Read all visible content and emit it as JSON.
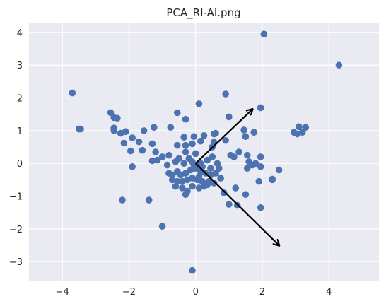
{
  "chart_data": {
    "type": "scatter",
    "title": "PCA_RI-AI.png",
    "xlabel": "",
    "ylabel": "",
    "xlim": [
      -5,
      5.5
    ],
    "ylim": [
      -3.6,
      4.3
    ],
    "x_ticks": [
      -4,
      -2,
      0,
      2,
      4
    ],
    "y_ticks": [
      -3,
      -2,
      -1,
      0,
      1,
      2,
      3,
      4
    ],
    "grid": true,
    "legend": "none",
    "colors": {
      "background": "#eaeaf2",
      "grid": "#ffffff",
      "points": "#4c72b0",
      "arrows": "#000000"
    },
    "points": [
      [
        -3.7,
        2.15
      ],
      [
        -3.5,
        1.05
      ],
      [
        -3.45,
        1.05
      ],
      [
        -2.55,
        1.55
      ],
      [
        -2.45,
        1.4
      ],
      [
        -2.35,
        1.38
      ],
      [
        -2.45,
        1.08
      ],
      [
        -2.45,
        1.0
      ],
      [
        -2.25,
        0.92
      ],
      [
        -2.1,
        0.97
      ],
      [
        -1.9,
        0.78
      ],
      [
        -2.15,
        0.62
      ],
      [
        -1.7,
        0.66
      ],
      [
        -1.55,
        1.0
      ],
      [
        -1.95,
        0.38
      ],
      [
        -1.6,
        0.4
      ],
      [
        -1.25,
        1.1
      ],
      [
        -0.75,
        1.1
      ],
      [
        -0.55,
        1.55
      ],
      [
        -0.3,
        1.35
      ],
      [
        0.1,
        1.82
      ],
      [
        -0.35,
        0.8
      ],
      [
        -0.05,
        0.82
      ],
      [
        0.25,
        0.85
      ],
      [
        0.55,
        0.9
      ],
      [
        0.6,
        0.92
      ],
      [
        0.15,
        0.68
      ],
      [
        0.55,
        0.65
      ],
      [
        0.9,
        0.7
      ],
      [
        0.5,
        0.5
      ],
      [
        -1.9,
        -0.1
      ],
      [
        -2.2,
        -1.12
      ],
      [
        -1.4,
        -1.12
      ],
      [
        -1.0,
        -1.92
      ],
      [
        -0.1,
        -3.27
      ],
      [
        -1.3,
        0.6
      ],
      [
        -1.2,
        0.35
      ],
      [
        -1.15,
        0.1
      ],
      [
        -1.3,
        0.08
      ],
      [
        -1.0,
        0.2
      ],
      [
        -0.8,
        0.25
      ],
      [
        -0.55,
        0.55
      ],
      [
        -0.3,
        0.55
      ],
      [
        -0.1,
        0.6
      ],
      [
        -0.3,
        0.35
      ],
      [
        0.0,
        0.3
      ],
      [
        -0.5,
        0.15
      ],
      [
        -0.2,
        0.15
      ],
      [
        -0.85,
        -0.05
      ],
      [
        -0.6,
        0.05
      ],
      [
        -0.35,
        0.0
      ],
      [
        -0.1,
        0.05
      ],
      [
        0.15,
        0.0
      ],
      [
        0.35,
        0.1
      ],
      [
        0.5,
        0.2
      ],
      [
        0.65,
        0.0
      ],
      [
        -0.8,
        -0.3
      ],
      [
        -0.7,
        -0.35
      ],
      [
        -0.55,
        -0.25
      ],
      [
        -0.45,
        -0.35
      ],
      [
        -0.3,
        -0.3
      ],
      [
        -0.15,
        -0.2
      ],
      [
        0.0,
        -0.15
      ],
      [
        0.15,
        -0.25
      ],
      [
        0.3,
        -0.3
      ],
      [
        0.45,
        -0.35
      ],
      [
        0.6,
        -0.3
      ],
      [
        0.75,
        -0.45
      ],
      [
        -0.7,
        -0.5
      ],
      [
        -0.55,
        -0.55
      ],
      [
        -0.4,
        -0.55
      ],
      [
        -0.25,
        -0.5
      ],
      [
        -0.1,
        -0.45
      ],
      [
        0.05,
        -0.5
      ],
      [
        0.2,
        -0.55
      ],
      [
        0.4,
        -0.55
      ],
      [
        0.55,
        -0.6
      ],
      [
        -0.6,
        -0.7
      ],
      [
        -0.4,
        -0.75
      ],
      [
        -0.25,
        -0.85
      ],
      [
        -0.1,
        -0.7
      ],
      [
        0.1,
        -0.75
      ],
      [
        0.25,
        -0.7
      ],
      [
        -0.3,
        -0.95
      ],
      [
        0.35,
        -0.65
      ],
      [
        0.1,
        -0.4
      ],
      [
        0.45,
        -0.15
      ],
      [
        -0.05,
        -0.05
      ],
      [
        0.2,
        -0.1
      ],
      [
        0.7,
        -0.15
      ],
      [
        1.05,
        0.25
      ],
      [
        1.15,
        0.2
      ],
      [
        1.3,
        0.35
      ],
      [
        1.0,
        1.42
      ],
      [
        0.9,
        2.12
      ],
      [
        1.45,
        1.02
      ],
      [
        1.75,
        0.95
      ],
      [
        1.5,
        0.82
      ],
      [
        1.55,
        0.25
      ],
      [
        1.6,
        0.05
      ],
      [
        1.55,
        -0.15
      ],
      [
        1.7,
        -0.05
      ],
      [
        1.8,
        0.0
      ],
      [
        1.95,
        -0.1
      ],
      [
        1.95,
        0.2
      ],
      [
        1.2,
        -0.75
      ],
      [
        1.5,
        -0.95
      ],
      [
        1.0,
        -1.25
      ],
      [
        1.25,
        -1.28
      ],
      [
        0.85,
        -0.9
      ],
      [
        1.9,
        -0.55
      ],
      [
        1.95,
        -1.35
      ],
      [
        1.95,
        1.7
      ],
      [
        2.05,
        3.95
      ],
      [
        2.3,
        -0.5
      ],
      [
        2.3,
        -0.48
      ],
      [
        2.5,
        -0.2
      ],
      [
        2.95,
        0.95
      ],
      [
        3.05,
        0.9
      ],
      [
        3.1,
        1.12
      ],
      [
        3.2,
        0.95
      ],
      [
        3.3,
        1.1
      ],
      [
        4.3,
        3.0
      ]
    ],
    "arrows": [
      {
        "from": [
          0,
          0
        ],
        "to": [
          1.7,
          1.65
        ]
      },
      {
        "from": [
          0,
          0
        ],
        "to": [
          2.5,
          -2.5
        ]
      }
    ]
  }
}
